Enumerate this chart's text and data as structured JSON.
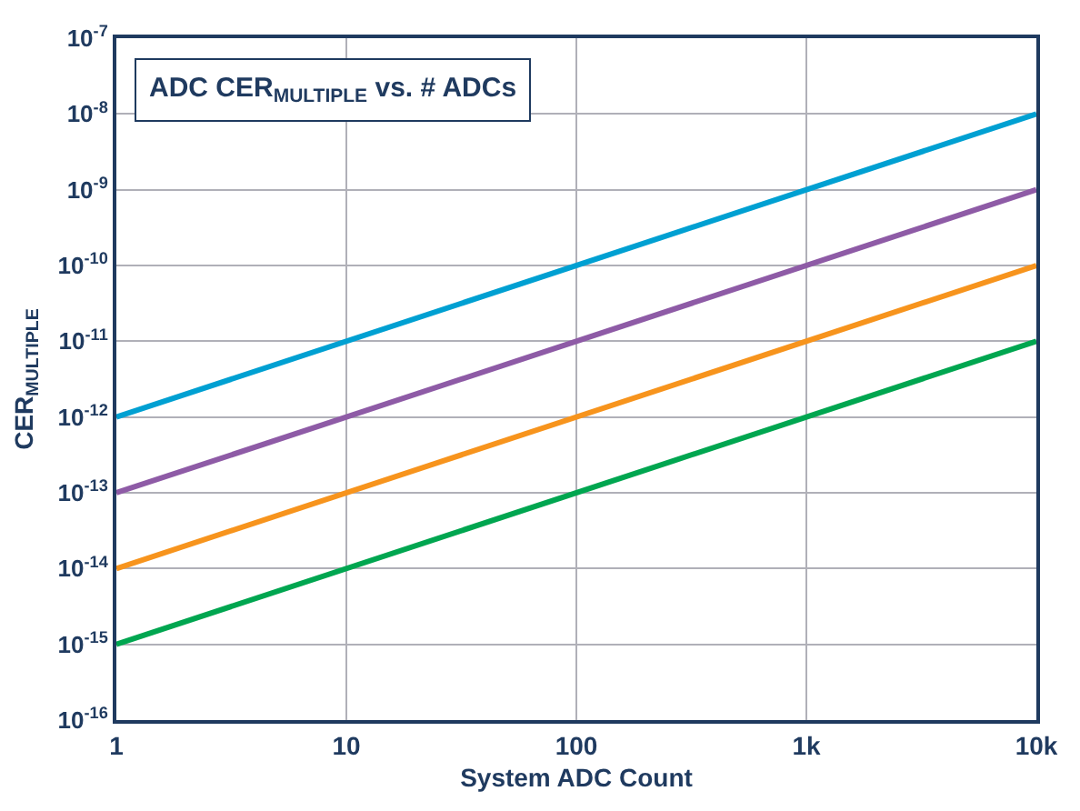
{
  "chart_data": {
    "type": "line",
    "title": "ADC CER$_{MULTIPLE}$ vs. # ADCs",
    "xlabel": "System ADC Count",
    "ylabel": "CER$_{MULTIPLE}$",
    "x": [
      1,
      10000
    ],
    "series": [
      {
        "color": "#00a0d2",
        "values": [
          1e-12,
          1e-08
        ]
      },
      {
        "color": "#8e5ba6",
        "values": [
          1e-13,
          1e-09
        ]
      },
      {
        "color": "#f7941d",
        "values": [
          1e-14,
          1e-10
        ]
      },
      {
        "color": "#00a650",
        "values": [
          1e-15,
          1e-11
        ]
      }
    ],
    "log": "xy",
    "grid": true,
    "marker": "none",
    "line_style": "solid",
    "xlim": [
      1,
      10000
    ],
    "xticks": [
      1,
      10,
      100,
      {
        "value": 1000,
        "label": "1k"
      },
      {
        "value": 10000,
        "label": "10k"
      }
    ],
    "ylim": [
      1e-16,
      1e-07
    ],
    "yticks": [
      {
        "value": 1e-16,
        "label": "10$^{-16}$"
      },
      {
        "value": 1e-15,
        "label": "10$^{-15}$"
      },
      {
        "value": 1e-14,
        "label": "10$^{-14}$"
      },
      {
        "value": 1e-13,
        "label": "10$^{-13}$"
      },
      {
        "value": 1e-12,
        "label": "10$^{-12}$"
      },
      {
        "value": 1e-11,
        "label": "10$^{-11}$"
      },
      {
        "value": 1e-10,
        "label": "10$^{-10}$"
      },
      {
        "value": 1e-09,
        "label": "10$^{-9}$"
      },
      {
        "value": 1e-08,
        "label": "10$^{-8}$"
      },
      {
        "value": 1e-07,
        "label": "10$^{-7}$"
      }
    ]
  }
}
